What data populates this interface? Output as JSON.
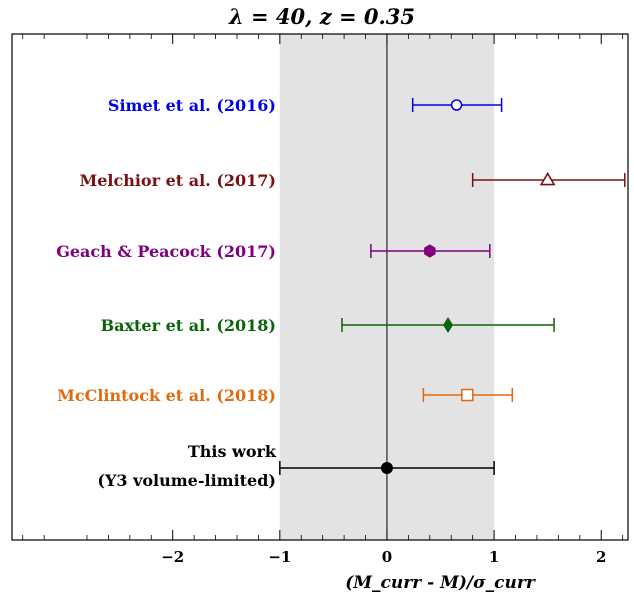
{
  "chart_data": {
    "type": "scatter",
    "title": "λ = 40, z = 0.35",
    "xlabel": "(M_curr - M)/σ_curr",
    "xlim": [
      -3.5,
      2.25
    ],
    "x_ticks": [
      -2,
      -1,
      0,
      1,
      2
    ],
    "x_tick_labels": [
      "−2",
      "−1",
      "0",
      "1",
      "2"
    ],
    "shaded_band": [
      -1,
      1
    ],
    "vertical_line_x": 0,
    "grid": false,
    "points": [
      {
        "label": "Simet et al. (2016)",
        "x": 0.65,
        "xerr_low": 0.24,
        "xerr_high": 1.07,
        "color": "#0000ee",
        "marker": "open-circle"
      },
      {
        "label": "Melchior et al. (2017)",
        "x": 1.5,
        "xerr_low": 0.8,
        "xerr_high": 2.22,
        "color": "#7a1010",
        "marker": "open-triangle"
      },
      {
        "label": "Geach & Peacock (2017)",
        "x": 0.4,
        "xerr_low": -0.15,
        "xerr_high": 0.96,
        "color": "#800080",
        "marker": "filled-hexagon"
      },
      {
        "label": "Baxter et al. (2018)",
        "x": 0.57,
        "xerr_low": -0.42,
        "xerr_high": 1.56,
        "color": "#0a640a",
        "marker": "filled-diamond"
      },
      {
        "label": "McClintock et al. (2018)",
        "x": 0.75,
        "xerr_low": 0.34,
        "xerr_high": 1.17,
        "color": "#e06a10",
        "marker": "open-square"
      },
      {
        "label": "This work",
        "label_line2": "(Y3 volume-limited)",
        "x": 0.0,
        "xerr_low": -1.0,
        "xerr_high": 1.0,
        "color": "#000000",
        "marker": "filled-circle"
      }
    ]
  }
}
